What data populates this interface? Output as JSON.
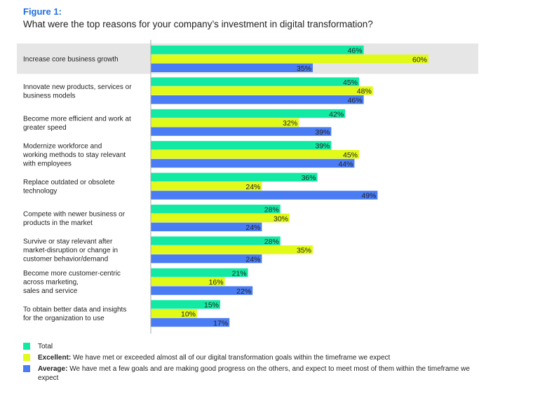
{
  "figure": {
    "label": "Figure 1:",
    "title": "What were the top reasons for your company’s investment in digital transformation?"
  },
  "colors": {
    "total": "#12eaa4",
    "excellent": "#e2fa18",
    "average": "#4a7cf3",
    "highlight": "#e6e6e6",
    "axis": "#aaaaaa"
  },
  "legend": [
    {
      "bold": "",
      "text": "Total"
    },
    {
      "bold": "Excellent:",
      "text": " We have met or exceeded almost all of our digital transformation goals within the timeframe we expect"
    },
    {
      "bold": "Average:",
      "text": " We have met a few goals and are making good progress on the others, and expect to meet most of them within the timeframe we expect"
    }
  ],
  "chart_data": {
    "type": "bar",
    "orientation": "horizontal",
    "categories": [
      [
        "Increase core business growth"
      ],
      [
        "Innovate new products, services or",
        "business models"
      ],
      [
        "Become more efficient and work at",
        "greater speed"
      ],
      [
        "Modernize workforce and",
        "working methods to stay relevant",
        "with employees"
      ],
      [
        "Replace outdated or obsolete",
        "technology"
      ],
      [
        "Compete with newer business or",
        "products in the market"
      ],
      [
        "Survive or stay relevant after",
        "market-disruption or change in",
        "customer behavior/demand"
      ],
      [
        "Become more customer-centric",
        "across marketing,",
        "sales and service"
      ],
      [
        "To obtain better data and insights",
        "for the organization to use"
      ]
    ],
    "series": [
      {
        "name": "Total",
        "values": [
          46,
          45,
          42,
          39,
          36,
          28,
          28,
          21,
          15
        ]
      },
      {
        "name": "Excellent",
        "values": [
          60,
          48,
          32,
          45,
          24,
          30,
          35,
          16,
          10
        ]
      },
      {
        "name": "Average",
        "values": [
          35,
          46,
          39,
          44,
          49,
          24,
          24,
          22,
          17
        ]
      }
    ],
    "unit": "%",
    "xlim": [
      0,
      100
    ],
    "highlighted_category_index": 0,
    "data_labels": true
  }
}
